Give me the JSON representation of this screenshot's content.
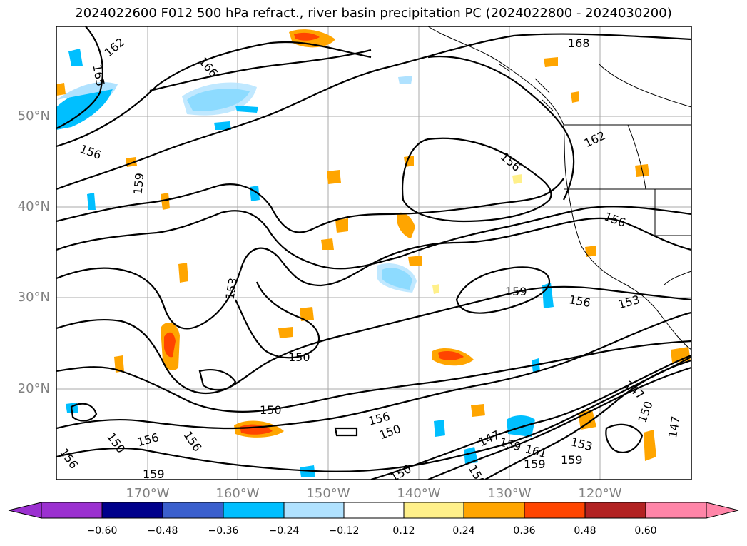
{
  "title": "2024022600 F012 500 hPa refract., river basin precipitation PC (2024022800 - 2024030200)",
  "lat_labels": [
    "50°N",
    "40°N",
    "30°N",
    "20°N"
  ],
  "lon_labels": [
    "170°W",
    "160°W",
    "150°W",
    "140°W",
    "130°W",
    "120°W"
  ],
  "contour_labels": [
    "162",
    "165",
    "166",
    "168",
    "156",
    "159",
    "156",
    "162",
    "156",
    "153",
    "159",
    "156",
    "153",
    "150",
    "150",
    "156",
    "150",
    "150",
    "147",
    "159",
    "161",
    "159",
    "159",
    "153",
    "150",
    "147",
    "156",
    "156",
    "150",
    "156",
    "159",
    "147",
    "150"
  ],
  "colorbar": {
    "ticks": [
      "−0.60",
      "−0.48",
      "−0.36",
      "−0.24",
      "−0.12",
      "0.12",
      "0.24",
      "0.36",
      "0.48",
      "0.60"
    ],
    "colors": [
      "#9b30d0",
      "#00008b",
      "#3a5fcd",
      "#00bfff",
      "#b0e2ff",
      "#ffffff",
      "#fff08a",
      "#ffa500",
      "#ff4500",
      "#b22222",
      "#ff85a8"
    ]
  }
}
